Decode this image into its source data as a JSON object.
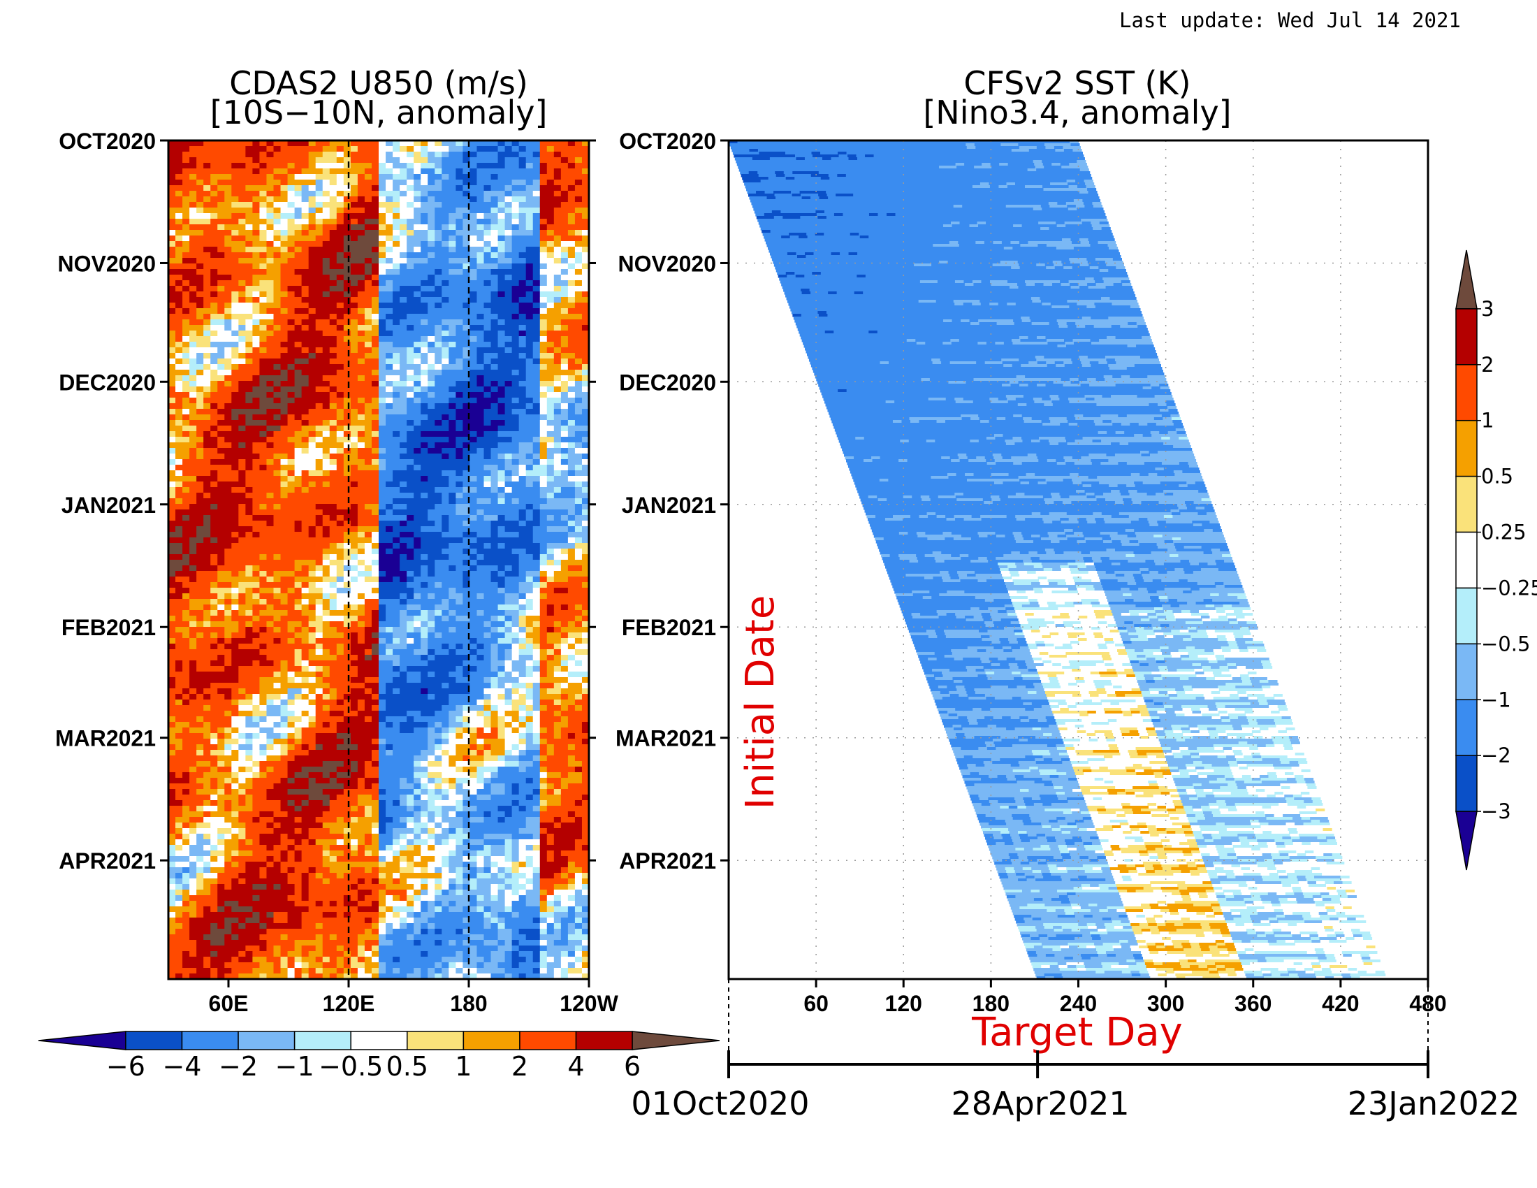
{
  "header": {
    "last_update": "Last update: Wed Jul 14 2021"
  },
  "chart_data": [
    {
      "type": "heatmap",
      "title": "CDAS2 U850 (m/s)",
      "subtitle": "[10S−10N, anomaly]",
      "y_ticks": [
        "OCT2020",
        "NOV2020",
        "DEC2020",
        "JAN2021",
        "FEB2021",
        "MAR2021",
        "APR2021"
      ],
      "y_range": [
        "OCT2020",
        "MAY2021"
      ],
      "x_ticks": [
        "60E",
        "120E",
        "180",
        "120W"
      ],
      "x_range_deg_east": [
        30,
        240
      ],
      "reference_lines_deg_east": [
        120,
        180
      ],
      "colorbar": {
        "orientation": "horizontal",
        "levels": [
          "−6",
          "−4",
          "−2",
          "−1",
          "−0.5",
          "0.5",
          "1",
          "2",
          "4",
          "6"
        ],
        "colors": [
          "#1a0094",
          "#0a50c8",
          "#3a8cf0",
          "#7ab8f5",
          "#b4eefa",
          "#ffffff",
          "#fae27a",
          "#f5a000",
          "#ff4a00",
          "#b40000",
          "#6e4a3c"
        ]
      }
    },
    {
      "type": "heatmap",
      "title": "CFSv2 SST (K)",
      "subtitle": "[Nino3.4, anomaly]",
      "y_ticks": [
        "OCT2020",
        "NOV2020",
        "DEC2020",
        "JAN2021",
        "FEB2021",
        "MAR2021",
        "APR2021"
      ],
      "ylabel": "Initial Date",
      "x_ticks": [
        60,
        120,
        180,
        240,
        300,
        360,
        420,
        480
      ],
      "x_range": [
        0,
        480
      ],
      "xlabel": "Target Day",
      "forecast_lead_days": 240,
      "target_dates": [
        "01Oct2020",
        "28Apr2021",
        "23Jan2022"
      ],
      "colorbar": {
        "orientation": "vertical",
        "levels": [
          "−3",
          "−2",
          "−1",
          "−0.5",
          "−0.25",
          "0.25",
          "0.5",
          "1",
          "2",
          "3"
        ],
        "colors": [
          "#1a0094",
          "#0a50c8",
          "#3a8cf0",
          "#7ab8f5",
          "#b4eefa",
          "#ffffff",
          "#fae27a",
          "#f5a000",
          "#ff4a00",
          "#b40000",
          "#6e4a3c"
        ]
      }
    }
  ]
}
